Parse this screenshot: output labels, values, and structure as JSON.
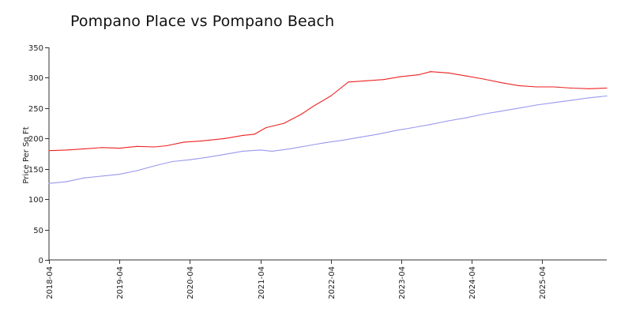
{
  "chart_data": {
    "type": "line",
    "title": "Pompano Place vs Pompano Beach",
    "xlabel": "",
    "ylabel": "Price Per Sq Ft",
    "ylim": [
      0,
      350
    ],
    "yticks": [
      0,
      50,
      100,
      150,
      200,
      250,
      300,
      350
    ],
    "xlim": [
      "2018-04",
      "2026-03"
    ],
    "xticks": [
      "2018-04",
      "2019-04",
      "2020-04",
      "2021-04",
      "2022-04",
      "2023-04",
      "2024-04",
      "2025-04"
    ],
    "grid": false,
    "legend": "none",
    "series": [
      {
        "color": "#ee2222",
        "points": [
          [
            "2018-04",
            180
          ],
          [
            "2018-07",
            181
          ],
          [
            "2018-10",
            183
          ],
          [
            "2019-01",
            185
          ],
          [
            "2019-04",
            184
          ],
          [
            "2019-07",
            187
          ],
          [
            "2019-10",
            186
          ],
          [
            "2019-12",
            188
          ],
          [
            "2020-03",
            194
          ],
          [
            "2020-06",
            196
          ],
          [
            "2020-10",
            200
          ],
          [
            "2021-01",
            205
          ],
          [
            "2021-03",
            207
          ],
          [
            "2021-05",
            218
          ],
          [
            "2021-08",
            225
          ],
          [
            "2021-11",
            240
          ],
          [
            "2022-01",
            253
          ],
          [
            "2022-04",
            270
          ],
          [
            "2022-07",
            293
          ],
          [
            "2022-10",
            295
          ],
          [
            "2023-01",
            297
          ],
          [
            "2023-04",
            302
          ],
          [
            "2023-07",
            305
          ],
          [
            "2023-09",
            310
          ],
          [
            "2023-12",
            308
          ],
          [
            "2024-03",
            303
          ],
          [
            "2024-06",
            298
          ],
          [
            "2024-09",
            292
          ],
          [
            "2024-12",
            287
          ],
          [
            "2025-03",
            285
          ],
          [
            "2025-06",
            285
          ],
          [
            "2025-09",
            283
          ],
          [
            "2025-12",
            282
          ],
          [
            "2026-03",
            283
          ]
        ]
      },
      {
        "color": "#9999ee",
        "points": [
          [
            "2018-04",
            126
          ],
          [
            "2018-07",
            129
          ],
          [
            "2018-10",
            135
          ],
          [
            "2019-01",
            138
          ],
          [
            "2019-04",
            141
          ],
          [
            "2019-07",
            147
          ],
          [
            "2019-10",
            155
          ],
          [
            "2020-01",
            162
          ],
          [
            "2020-04",
            165
          ],
          [
            "2020-07",
            169
          ],
          [
            "2020-10",
            174
          ],
          [
            "2021-01",
            179
          ],
          [
            "2021-04",
            181
          ],
          [
            "2021-06",
            179
          ],
          [
            "2021-09",
            183
          ],
          [
            "2021-12",
            188
          ],
          [
            "2022-03",
            193
          ],
          [
            "2022-06",
            197
          ],
          [
            "2022-09",
            202
          ],
          [
            "2022-12",
            207
          ],
          [
            "2023-03",
            213
          ],
          [
            "2023-06",
            218
          ],
          [
            "2023-09",
            223
          ],
          [
            "2023-12",
            229
          ],
          [
            "2024-03",
            234
          ],
          [
            "2024-06",
            240
          ],
          [
            "2024-09",
            245
          ],
          [
            "2024-12",
            250
          ],
          [
            "2025-03",
            255
          ],
          [
            "2025-06",
            259
          ],
          [
            "2025-09",
            263
          ],
          [
            "2025-12",
            267
          ],
          [
            "2026-03",
            270
          ]
        ]
      }
    ]
  }
}
